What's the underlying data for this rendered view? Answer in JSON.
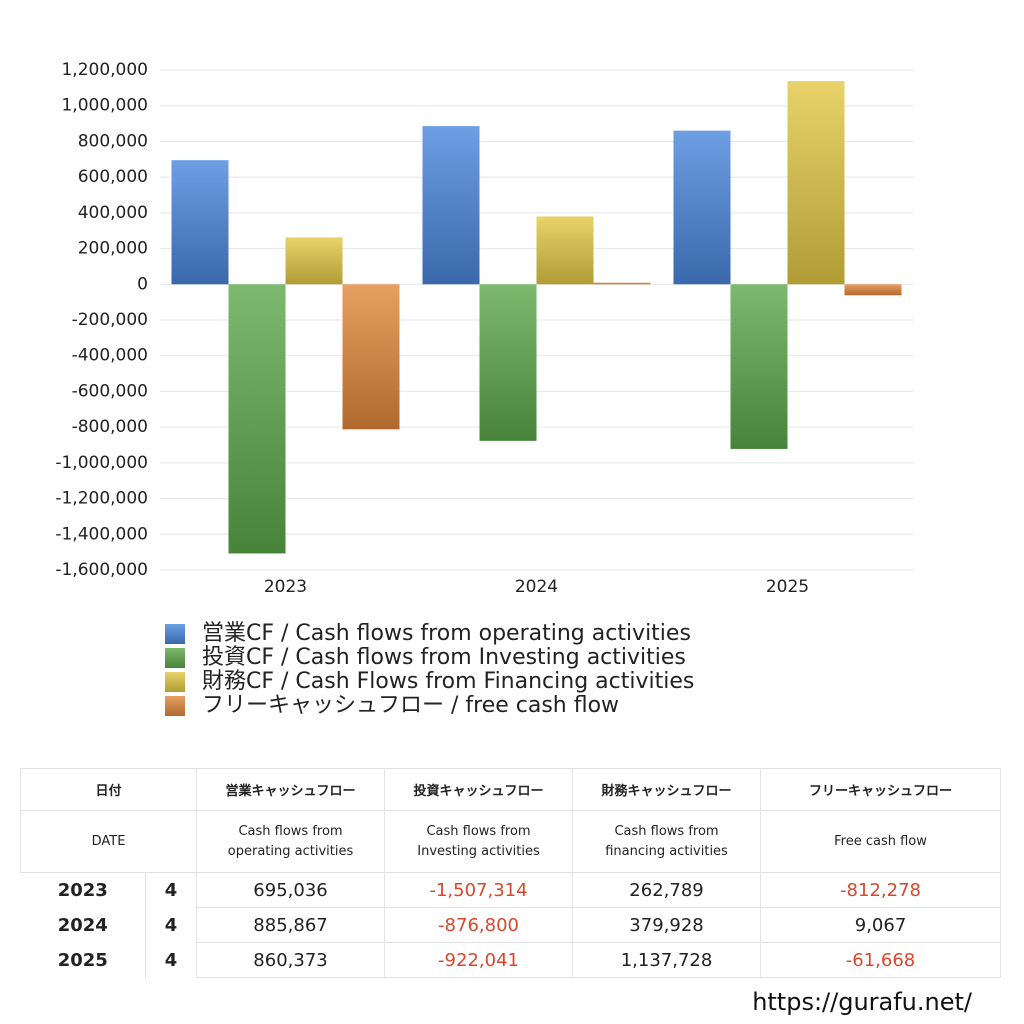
{
  "chart_data": {
    "type": "bar",
    "categories": [
      "2023",
      "2024",
      "2025"
    ],
    "series": [
      {
        "name": "営業CF / Cash flows from operating activities",
        "color": "#4a86dc",
        "values": [
          695036,
          885867,
          860373
        ]
      },
      {
        "name": "投資CF / Cash flows from Investing activities",
        "color": "#5ca84a",
        "values": [
          -1507314,
          -876800,
          -922041
        ]
      },
      {
        "name": "財務CF / Cash Flows from Financing activities",
        "color": "#e3c844",
        "values": [
          262789,
          379928,
          1137728
        ]
      },
      {
        "name": "フリーキャッシュフロー / free cash flow",
        "color": "#e2873a",
        "values": [
          -812278,
          9067,
          -61668
        ]
      }
    ],
    "ylim": [
      -1600000,
      1200000
    ],
    "yticks": [
      {
        "value": -1600000,
        "label": "-1,600,000"
      },
      {
        "value": -1400000,
        "label": "-1,400,000"
      },
      {
        "value": -1200000,
        "label": "-1,200,000"
      },
      {
        "value": -1000000,
        "label": "-1,000,000"
      },
      {
        "value": -800000,
        "label": "-800,000"
      },
      {
        "value": -600000,
        "label": "-600,000"
      },
      {
        "value": -400000,
        "label": "-400,000"
      },
      {
        "value": -200000,
        "label": "-200,000"
      },
      0,
      {
        "value": 200000,
        "label": "200,000"
      },
      {
        "value": 400000,
        "label": "400,000"
      },
      {
        "value": 600000,
        "label": "600,000"
      },
      {
        "value": 800000,
        "label": "800,000"
      },
      {
        "value": 1000000,
        "label": "1,000,000"
      },
      {
        "value": 1200000,
        "label": "1,200,000"
      }
    ],
    "grid": true
  },
  "table": {
    "header": [
      "日付",
      "営業キャッシュフロー",
      "投資キャッシュフロー",
      "財務キャッシュフロー",
      "フリーキャッシュフロー"
    ],
    "subheader": [
      "DATE",
      "Cash flows from\noperating activities",
      "Cash flows from\nInvesting activities",
      "Cash flows from\nfinancing activities",
      "Free cash flow"
    ],
    "rows": [
      [
        "2023",
        "4",
        "695,036",
        "-1,507,314",
        "262,789",
        "-812,278"
      ],
      [
        "2024",
        "4",
        "885,867",
        "-876,800",
        "379,928",
        "9,067"
      ],
      [
        "2025",
        "4",
        "860,373",
        "-922,041",
        "1,137,728",
        "-61,668"
      ]
    ]
  },
  "footer": "https://gurafu.net/"
}
